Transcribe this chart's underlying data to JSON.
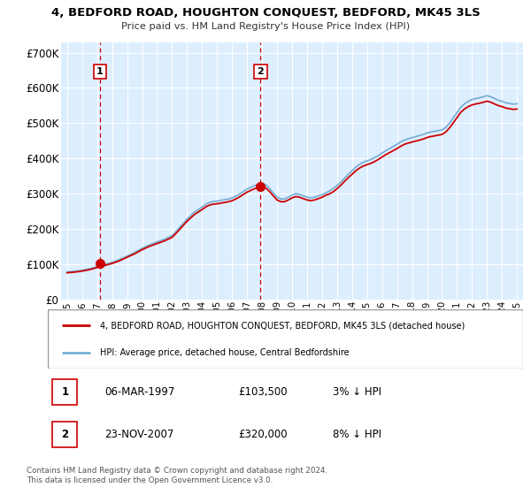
{
  "title": "4, BEDFORD ROAD, HOUGHTON CONQUEST, BEDFORD, MK45 3LS",
  "subtitle": "Price paid vs. HM Land Registry's House Price Index (HPI)",
  "bg_color": "#ddeeff",
  "ylabel_ticks": [
    "£0",
    "£100K",
    "£200K",
    "£300K",
    "£400K",
    "£500K",
    "£600K",
    "£700K"
  ],
  "ytick_vals": [
    0,
    100000,
    200000,
    300000,
    400000,
    500000,
    600000,
    700000
  ],
  "ylim": [
    0,
    730000
  ],
  "xlim_start": 1994.6,
  "xlim_end": 2025.4,
  "xtick_years": [
    1995,
    1996,
    1997,
    1998,
    1999,
    2000,
    2001,
    2002,
    2003,
    2004,
    2005,
    2006,
    2007,
    2008,
    2009,
    2010,
    2011,
    2012,
    2013,
    2014,
    2015,
    2016,
    2017,
    2018,
    2019,
    2020,
    2021,
    2022,
    2023,
    2024,
    2025
  ],
  "sale1_x": 1997.18,
  "sale1_y": 103500,
  "sale1_label": "1",
  "sale2_x": 2007.9,
  "sale2_y": 320000,
  "sale2_label": "2",
  "sale_color": "#cc0000",
  "hpi_color": "#7ab0d4",
  "property_line_color": "#cc0000",
  "legend_label1": "4, BEDFORD ROAD, HOUGHTON CONQUEST, BEDFORD, MK45 3LS (detached house)",
  "legend_label2": "HPI: Average price, detached house, Central Bedfordshire",
  "table_rows": [
    {
      "num": "1",
      "date": "06-MAR-1997",
      "price": "£103,500",
      "pct": "3% ↓ HPI"
    },
    {
      "num": "2",
      "date": "23-NOV-2007",
      "price": "£320,000",
      "pct": "8% ↓ HPI"
    }
  ],
  "footnote": "Contains HM Land Registry data © Crown copyright and database right 2024.\nThis data is licensed under the Open Government Licence v3.0.",
  "hpi_data_x": [
    1995,
    1995.25,
    1995.5,
    1995.75,
    1996,
    1996.25,
    1996.5,
    1996.75,
    1997,
    1997.25,
    1997.5,
    1997.75,
    1998,
    1998.25,
    1998.5,
    1998.75,
    1999,
    1999.25,
    1999.5,
    1999.75,
    2000,
    2000.25,
    2000.5,
    2000.75,
    2001,
    2001.25,
    2001.5,
    2001.75,
    2002,
    2002.25,
    2002.5,
    2002.75,
    2003,
    2003.25,
    2003.5,
    2003.75,
    2004,
    2004.25,
    2004.5,
    2004.75,
    2005,
    2005.25,
    2005.5,
    2005.75,
    2006,
    2006.25,
    2006.5,
    2006.75,
    2007,
    2007.25,
    2007.5,
    2007.75,
    2008,
    2008.25,
    2008.5,
    2008.75,
    2009,
    2009.25,
    2009.5,
    2009.75,
    2010,
    2010.25,
    2010.5,
    2010.75,
    2011,
    2011.25,
    2011.5,
    2011.75,
    2012,
    2012.25,
    2012.5,
    2012.75,
    2013,
    2013.25,
    2013.5,
    2013.75,
    2014,
    2014.25,
    2014.5,
    2014.75,
    2015,
    2015.25,
    2015.5,
    2015.75,
    2016,
    2016.25,
    2016.5,
    2016.75,
    2017,
    2017.25,
    2017.5,
    2017.75,
    2018,
    2018.25,
    2018.5,
    2018.75,
    2019,
    2019.25,
    2019.5,
    2019.75,
    2020,
    2020.25,
    2020.5,
    2020.75,
    2021,
    2021.25,
    2021.5,
    2021.75,
    2022,
    2022.25,
    2022.5,
    2022.75,
    2023,
    2023.25,
    2023.5,
    2023.75,
    2024,
    2024.25,
    2024.5,
    2024.75,
    2025
  ],
  "hpi_data_y": [
    78000,
    79000,
    80000,
    81000,
    83000,
    85000,
    87000,
    90000,
    93000,
    96000,
    99000,
    102000,
    105000,
    109000,
    113000,
    118000,
    123000,
    128000,
    133000,
    139000,
    145000,
    150000,
    155000,
    159000,
    163000,
    167000,
    171000,
    176000,
    181000,
    192000,
    204000,
    216000,
    228000,
    238000,
    248000,
    255000,
    262000,
    270000,
    275000,
    278000,
    279000,
    281000,
    283000,
    285000,
    288000,
    293000,
    299000,
    306000,
    313000,
    318000,
    323000,
    327000,
    330000,
    325000,
    315000,
    302000,
    290000,
    285000,
    285000,
    290000,
    296000,
    300000,
    298000,
    294000,
    290000,
    288000,
    290000,
    294000,
    297000,
    302000,
    308000,
    315000,
    323000,
    333000,
    344000,
    355000,
    365000,
    375000,
    383000,
    389000,
    393000,
    397000,
    402000,
    408000,
    415000,
    422000,
    428000,
    434000,
    440000,
    447000,
    452000,
    456000,
    459000,
    462000,
    465000,
    468000,
    472000,
    475000,
    477000,
    479000,
    481000,
    488000,
    500000,
    515000,
    530000,
    545000,
    555000,
    562000,
    567000,
    570000,
    572000,
    575000,
    578000,
    575000,
    570000,
    565000,
    562000,
    558000,
    556000,
    554000,
    555000
  ],
  "prop_data_x": [
    1995,
    1995.25,
    1995.5,
    1995.75,
    1996,
    1996.25,
    1996.5,
    1996.75,
    1997,
    1997.25,
    1997.5,
    1997.75,
    1998,
    1998.25,
    1998.5,
    1998.75,
    1999,
    1999.25,
    1999.5,
    1999.75,
    2000,
    2000.25,
    2000.5,
    2000.75,
    2001,
    2001.25,
    2001.5,
    2001.75,
    2002,
    2002.25,
    2002.5,
    2002.75,
    2003,
    2003.25,
    2003.5,
    2003.75,
    2004,
    2004.25,
    2004.5,
    2004.75,
    2005,
    2005.25,
    2005.5,
    2005.75,
    2006,
    2006.25,
    2006.5,
    2006.75,
    2007,
    2007.25,
    2007.5,
    2007.75,
    2008,
    2008.25,
    2008.5,
    2008.75,
    2009,
    2009.25,
    2009.5,
    2009.75,
    2010,
    2010.25,
    2010.5,
    2010.75,
    2011,
    2011.25,
    2011.5,
    2011.75,
    2012,
    2012.25,
    2012.5,
    2012.75,
    2013,
    2013.25,
    2013.5,
    2013.75,
    2014,
    2014.25,
    2014.5,
    2014.75,
    2015,
    2015.25,
    2015.5,
    2015.75,
    2016,
    2016.25,
    2016.5,
    2016.75,
    2017,
    2017.25,
    2017.5,
    2017.75,
    2018,
    2018.25,
    2018.5,
    2018.75,
    2019,
    2019.25,
    2019.5,
    2019.75,
    2020,
    2020.25,
    2020.5,
    2020.75,
    2021,
    2021.25,
    2021.5,
    2021.75,
    2022,
    2022.25,
    2022.5,
    2022.75,
    2023,
    2023.25,
    2023.5,
    2023.75,
    2024,
    2024.25,
    2024.5,
    2024.75,
    2025
  ],
  "prop_data_y": [
    75700,
    76700,
    77700,
    78800,
    80600,
    82600,
    84600,
    87500,
    90500,
    93400,
    96400,
    99300,
    102200,
    106000,
    109900,
    114800,
    119700,
    124600,
    129500,
    135300,
    141100,
    146000,
    150900,
    154700,
    158600,
    162400,
    166300,
    171100,
    176000,
    186900,
    198400,
    210300,
    221800,
    231600,
    241200,
    248100,
    254900,
    262700,
    267600,
    270400,
    271400,
    273300,
    275200,
    277200,
    280100,
    285100,
    290900,
    297700,
    304500,
    309400,
    314200,
    318100,
    321100,
    316200,
    306300,
    293900,
    282200,
    277400,
    277400,
    282200,
    287900,
    291800,
    289900,
    286000,
    282200,
    280300,
    282200,
    286000,
    289900,
    295600,
    299500,
    305700,
    314200,
    324000,
    334800,
    345600,
    355000,
    364900,
    372700,
    378500,
    382300,
    386200,
    390900,
    397100,
    403900,
    410700,
    416500,
    422200,
    428000,
    434800,
    440200,
    443600,
    446500,
    449300,
    452100,
    455000,
    459300,
    462100,
    464000,
    466000,
    468000,
    475000,
    486600,
    501000,
    515900,
    530900,
    540200,
    547100,
    551800,
    554600,
    556500,
    559400,
    562400,
    559400,
    554600,
    549800,
    547100,
    542900,
    541000,
    539100,
    540200
  ]
}
